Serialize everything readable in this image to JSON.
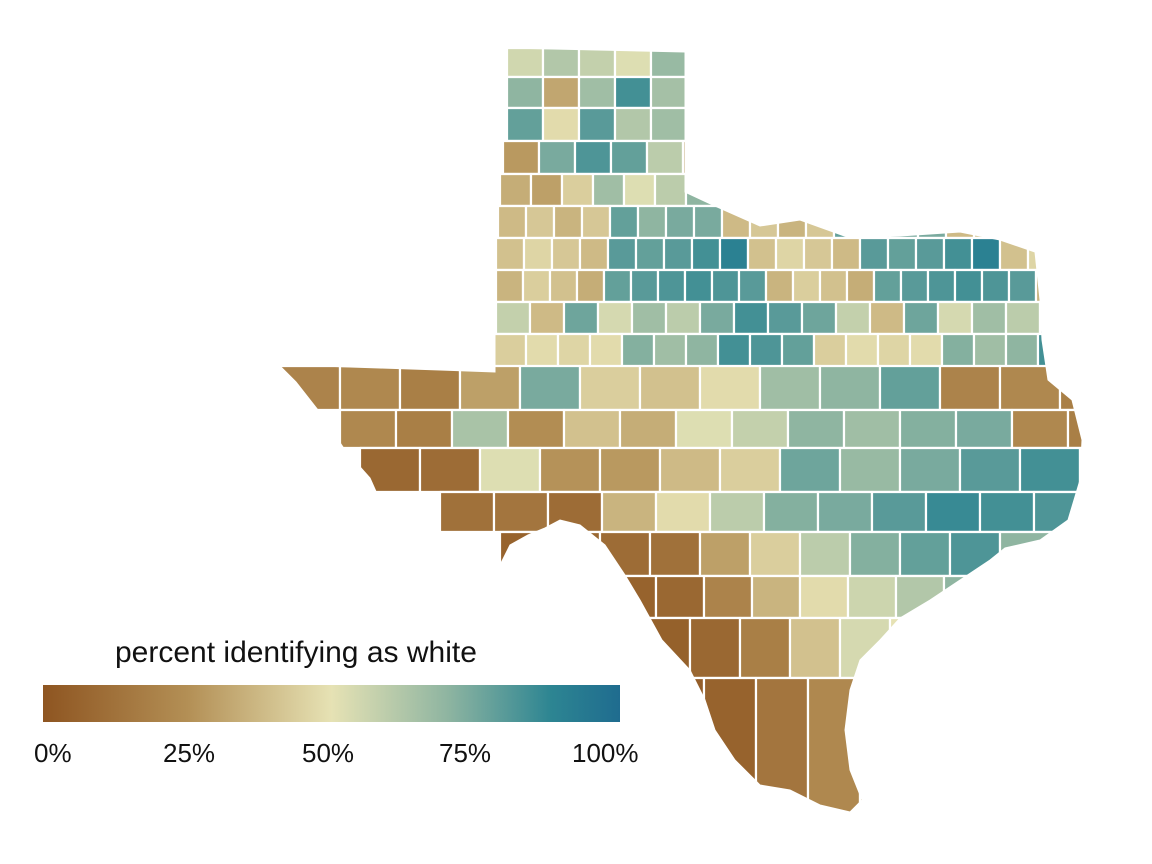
{
  "legend": {
    "title": "percent identifying as white",
    "ticks": [
      "0%",
      "25%",
      "50%",
      "75%",
      "100%"
    ],
    "scale_colors": [
      "#8e5521",
      "#b38f55",
      "#e6e2b4",
      "#8fb5a1",
      "#2d8592",
      "#1f6c8f"
    ]
  },
  "map": {
    "region": "Texas counties",
    "variable_percent_white_by_cell": [
      [
        55,
        62,
        58,
        52,
        68
      ],
      [
        70,
        32,
        66,
        84,
        65
      ],
      [
        78,
        48,
        80,
        62,
        66
      ],
      [
        28,
        74,
        82,
        78,
        60
      ],
      [
        34,
        30,
        44,
        66,
        52,
        60,
        70
      ],
      [
        38,
        42,
        36,
        42,
        78,
        70,
        74,
        74
      ],
      [
        40,
        46,
        42,
        38,
        80,
        78,
        80,
        84,
        90
      ],
      [
        36,
        44,
        40,
        34,
        78,
        80,
        82,
        84,
        82,
        80
      ],
      [
        58,
        38,
        76,
        54,
        66,
        60,
        74,
        84,
        80,
        76
      ],
      [
        44,
        48,
        46,
        48,
        72,
        66,
        70,
        84,
        82,
        78
      ],
      [
        20,
        22,
        18,
        30,
        74,
        44,
        40,
        48,
        66,
        70,
        78
      ],
      [
        22,
        18,
        64,
        24,
        40,
        34,
        52,
        58,
        70,
        66,
        72,
        74
      ],
      [
        8,
        10,
        52,
        26,
        28,
        38,
        44,
        76,
        68,
        74,
        80,
        84
      ],
      [
        12,
        14,
        10,
        36,
        48,
        60,
        72,
        74,
        80,
        86,
        84,
        82
      ],
      [
        6,
        8,
        10,
        12,
        30,
        44,
        60,
        72,
        78,
        82,
        70,
        66
      ],
      [
        4,
        6,
        8,
        20,
        36,
        48,
        56,
        62,
        70,
        64,
        36,
        40
      ],
      [
        3,
        5,
        8,
        18,
        40,
        54,
        50,
        46,
        58,
        44,
        40,
        46
      ],
      [
        2,
        4,
        6,
        14,
        22,
        36,
        48,
        52,
        40,
        38,
        42,
        48
      ]
    ]
  }
}
